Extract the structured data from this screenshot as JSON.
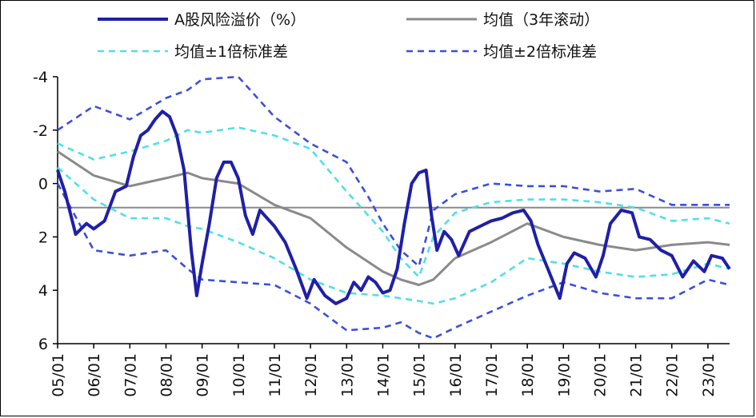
{
  "chart_data": {
    "type": "line",
    "y_axis": {
      "inverted": true,
      "ylim": [
        -4,
        6
      ],
      "ticks": [
        "-4",
        "-2",
        "0",
        "2",
        "4",
        "6"
      ]
    },
    "x_axis": {
      "ticks": [
        "05/01",
        "06/01",
        "07/01",
        "08/01",
        "09/01",
        "10/01",
        "11/01",
        "12/01",
        "13/01",
        "14/01",
        "15/01",
        "16/01",
        "17/01",
        "18/01",
        "19/01",
        "20/01",
        "21/01",
        "22/01",
        "23/01"
      ]
    },
    "grid": false,
    "legend_position": "top",
    "series": [
      {
        "name": "A股风险溢价（%）",
        "color": "#1f1fa8",
        "style": "solid-thick",
        "x": [
          2005.0,
          2005.2,
          2005.5,
          2005.8,
          2006.0,
          2006.3,
          2006.6,
          2006.9,
          2007.1,
          2007.3,
          2007.5,
          2007.7,
          2007.9,
          2008.1,
          2008.3,
          2008.5,
          2008.7,
          2008.85,
          2009.0,
          2009.2,
          2009.4,
          2009.6,
          2009.8,
          2010.0,
          2010.2,
          2010.4,
          2010.6,
          2010.8,
          2011.0,
          2011.3,
          2011.6,
          2011.9,
          2012.1,
          2012.4,
          2012.7,
          2013.0,
          2013.2,
          2013.4,
          2013.6,
          2013.8,
          2014.0,
          2014.2,
          2014.4,
          2014.6,
          2014.8,
          2015.0,
          2015.2,
          2015.35,
          2015.5,
          2015.7,
          2015.9,
          2016.1,
          2016.4,
          2016.7,
          2017.0,
          2017.3,
          2017.6,
          2017.9,
          2018.1,
          2018.3,
          2018.6,
          2018.9,
          2019.1,
          2019.3,
          2019.6,
          2019.9,
          2020.1,
          2020.3,
          2020.6,
          2020.9,
          2021.1,
          2021.4,
          2021.7,
          2022.0,
          2022.3,
          2022.6,
          2022.9,
          2023.1,
          2023.4,
          2023.6
        ],
        "y": [
          -0.5,
          0.3,
          1.9,
          1.5,
          1.7,
          1.4,
          0.3,
          0.1,
          -1.0,
          -1.8,
          -2.0,
          -2.4,
          -2.7,
          -2.5,
          -1.8,
          -0.5,
          2.5,
          4.2,
          3.0,
          1.5,
          -0.2,
          -0.8,
          -0.8,
          -0.2,
          1.2,
          1.9,
          1.0,
          1.3,
          1.6,
          2.2,
          3.2,
          4.3,
          3.6,
          4.2,
          4.5,
          4.3,
          3.7,
          4.0,
          3.5,
          3.7,
          4.1,
          4.0,
          3.2,
          1.5,
          0.0,
          -0.4,
          -0.5,
          1.2,
          2.5,
          1.8,
          2.1,
          2.7,
          1.8,
          1.6,
          1.4,
          1.3,
          1.1,
          1.0,
          1.4,
          2.3,
          3.3,
          4.3,
          3.0,
          2.6,
          2.8,
          3.5,
          2.7,
          1.5,
          1.0,
          1.1,
          2.0,
          2.1,
          2.5,
          2.7,
          3.5,
          2.9,
          3.3,
          2.7,
          2.8,
          3.2
        ]
      },
      {
        "name": "均值（3年滚动）",
        "color": "#8a8a8a",
        "style": "solid",
        "x": [
          2005.0,
          2006.0,
          2007.0,
          2008.0,
          2008.6,
          2009.0,
          2010.0,
          2011.0,
          2012.0,
          2013.0,
          2014.0,
          2014.5,
          2015.0,
          2015.4,
          2016.0,
          2017.0,
          2018.0,
          2019.0,
          2020.0,
          2021.0,
          2022.0,
          2023.0,
          2023.6
        ],
        "y": [
          -1.2,
          -0.3,
          0.1,
          -0.2,
          -0.4,
          -0.2,
          0.0,
          0.8,
          1.3,
          2.4,
          3.3,
          3.6,
          3.8,
          3.6,
          2.8,
          2.2,
          1.5,
          2.0,
          2.3,
          2.5,
          2.3,
          2.2,
          2.3
        ]
      },
      {
        "name": "均值±1倍标准差",
        "color": "#4fe0e8",
        "style": "dashed",
        "x": [
          2005.0,
          2006.0,
          2007.0,
          2008.0,
          2008.6,
          2009.0,
          2010.0,
          2011.0,
          2012.0,
          2013.0,
          2014.0,
          2014.5,
          2015.0,
          2015.4,
          2016.0,
          2017.0,
          2018.0,
          2019.0,
          2020.0,
          2021.0,
          2022.0,
          2023.0,
          2023.6
        ],
        "y": [
          -1.5,
          -0.9,
          -1.2,
          -1.6,
          -2.0,
          -1.9,
          -2.1,
          -1.8,
          -1.3,
          0.3,
          1.8,
          2.8,
          3.5,
          2.0,
          1.1,
          0.7,
          0.6,
          0.6,
          0.7,
          0.9,
          1.4,
          1.3,
          1.5
        ]
      },
      {
        "name": "均值±1倍标准差",
        "color": "#4fe0e8",
        "style": "dashed",
        "x": [
          2005.0,
          2006.0,
          2007.0,
          2008.0,
          2008.6,
          2009.0,
          2010.0,
          2011.0,
          2012.0,
          2013.0,
          2014.0,
          2014.5,
          2015.0,
          2015.4,
          2016.0,
          2017.0,
          2018.0,
          2019.0,
          2020.0,
          2021.0,
          2022.0,
          2023.0,
          2023.6
        ],
        "y": [
          -0.6,
          0.6,
          1.3,
          1.3,
          1.6,
          1.7,
          2.2,
          2.8,
          3.6,
          4.1,
          4.2,
          4.3,
          4.4,
          4.5,
          4.3,
          3.7,
          2.8,
          3.0,
          3.3,
          3.5,
          3.4,
          3.0,
          3.2
        ]
      },
      {
        "name": "均值±2倍标准差",
        "color": "#3a4fe0",
        "style": "dashed",
        "x": [
          2005.0,
          2006.0,
          2007.0,
          2008.0,
          2008.6,
          2009.0,
          2010.0,
          2011.0,
          2012.0,
          2013.0,
          2013.6,
          2014.0,
          2014.5,
          2015.0,
          2015.4,
          2016.0,
          2017.0,
          2018.0,
          2019.0,
          2020.0,
          2021.0,
          2022.0,
          2023.0,
          2023.6
        ],
        "y": [
          -2.0,
          -2.9,
          -2.4,
          -3.2,
          -3.5,
          -3.9,
          -4.0,
          -2.5,
          -1.5,
          -0.8,
          0.5,
          1.5,
          2.5,
          3.1,
          1.0,
          0.4,
          0.0,
          0.1,
          0.1,
          0.3,
          0.2,
          0.8,
          0.8,
          0.8
        ]
      },
      {
        "name": "均值±2倍标准差",
        "color": "#3a4fe0",
        "style": "dashed",
        "x": [
          2005.0,
          2006.0,
          2007.0,
          2008.0,
          2008.6,
          2009.0,
          2010.0,
          2011.0,
          2012.0,
          2013.0,
          2014.0,
          2014.5,
          2015.0,
          2015.4,
          2016.0,
          2017.0,
          2018.0,
          2019.0,
          2020.0,
          2021.0,
          2022.0,
          2023.0,
          2023.6
        ],
        "y": [
          0.0,
          2.5,
          2.7,
          2.5,
          3.2,
          3.6,
          3.7,
          3.8,
          4.5,
          5.5,
          5.4,
          5.2,
          5.6,
          5.8,
          5.4,
          4.8,
          4.2,
          3.7,
          4.1,
          4.3,
          4.3,
          3.6,
          3.8
        ]
      },
      {
        "name": "",
        "color": "#8a8a8a",
        "style": "solid-thin",
        "x": [
          2005.0,
          2023.6
        ],
        "y": [
          0.9,
          0.9
        ]
      }
    ],
    "legend": [
      {
        "label": "A股风险溢价（%）",
        "color": "#1f1fa8",
        "style": "solid-thick"
      },
      {
        "label": "均值（3年滚动）",
        "color": "#8a8a8a",
        "style": "solid"
      },
      {
        "label": "均值±1倍标准差",
        "color": "#4fe0e8",
        "style": "dashed"
      },
      {
        "label": "均值±2倍标准差",
        "color": "#3a4fe0",
        "style": "dashed"
      }
    ]
  }
}
